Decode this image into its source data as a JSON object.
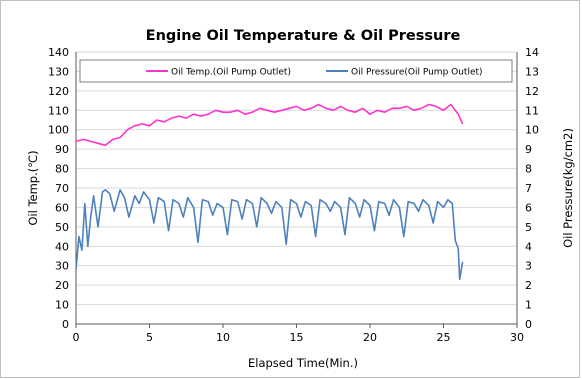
{
  "chart_data": {
    "type": "line",
    "title": "Engine Oil Temperature & Oil Pressure",
    "xlabel": "Elapsed Time(Min.)",
    "ylabel": "Oil Temp.(℃)",
    "y2label": "Oil Pressure(kg/cm2)",
    "xlim": [
      0,
      30
    ],
    "ylim": [
      0,
      140
    ],
    "y2lim": [
      0,
      14
    ],
    "x_ticks": [
      "0",
      "5",
      "10",
      "15",
      "20",
      "25",
      "30"
    ],
    "y_ticks": [
      "0",
      "10",
      "20",
      "30",
      "40",
      "50",
      "60",
      "70",
      "80",
      "90",
      "100",
      "110",
      "120",
      "130",
      "140"
    ],
    "y2_ticks": [
      "0",
      "1",
      "2",
      "3",
      "4",
      "5",
      "6",
      "7",
      "8",
      "9",
      "10",
      "11",
      "12",
      "13",
      "14"
    ],
    "grid": true,
    "legend_position": "top",
    "series": [
      {
        "name": "Oil Temp.(Oil Pump Outlet)",
        "axis": "left",
        "color": "#ff33cc",
        "x": [
          0,
          0.5,
          1.0,
          1.5,
          2.0,
          2.5,
          3.0,
          3.5,
          4.0,
          4.5,
          5.0,
          5.5,
          6.0,
          6.5,
          7.0,
          7.5,
          8.0,
          8.5,
          9.0,
          9.5,
          10.0,
          10.5,
          11.0,
          11.5,
          12.0,
          12.5,
          13.0,
          13.5,
          14.0,
          14.5,
          15.0,
          15.5,
          16.0,
          16.5,
          17.0,
          17.5,
          18.0,
          18.5,
          19.0,
          19.5,
          20.0,
          20.5,
          21.0,
          21.5,
          22.0,
          22.5,
          23.0,
          23.5,
          24.0,
          24.5,
          25.0,
          25.5,
          26.0,
          26.3
        ],
        "values": [
          94,
          95,
          94,
          93,
          92,
          95,
          96,
          100,
          102,
          103,
          102,
          105,
          104,
          106,
          107,
          106,
          108,
          107,
          108,
          110,
          109,
          109,
          110,
          108,
          109,
          111,
          110,
          109,
          110,
          111,
          112,
          110,
          111,
          113,
          111,
          110,
          112,
          110,
          109,
          111,
          108,
          110,
          109,
          111,
          111,
          112,
          110,
          111,
          113,
          112,
          110,
          113,
          108,
          103
        ]
      },
      {
        "name": "Oil Pressure(Oil Pump Outlet)",
        "axis": "right",
        "color": "#4f81bd",
        "x": [
          0,
          0.2,
          0.4,
          0.6,
          0.8,
          1.0,
          1.2,
          1.5,
          1.8,
          2.0,
          2.3,
          2.6,
          3.0,
          3.3,
          3.6,
          4.0,
          4.3,
          4.6,
          5.0,
          5.3,
          5.6,
          6.0,
          6.3,
          6.6,
          7.0,
          7.3,
          7.6,
          8.0,
          8.3,
          8.6,
          9.0,
          9.3,
          9.6,
          10.0,
          10.3,
          10.6,
          11.0,
          11.3,
          11.6,
          12.0,
          12.3,
          12.6,
          13.0,
          13.3,
          13.6,
          14.0,
          14.3,
          14.6,
          15.0,
          15.3,
          15.6,
          16.0,
          16.3,
          16.6,
          17.0,
          17.3,
          17.6,
          18.0,
          18.3,
          18.6,
          19.0,
          19.3,
          19.6,
          20.0,
          20.3,
          20.6,
          21.0,
          21.3,
          21.6,
          22.0,
          22.3,
          22.6,
          23.0,
          23.3,
          23.6,
          24.0,
          24.3,
          24.6,
          25.0,
          25.3,
          25.6,
          25.8,
          26.0,
          26.1,
          26.3
        ],
        "values": [
          2.8,
          4.5,
          3.8,
          6.2,
          4.0,
          5.5,
          6.6,
          5.0,
          6.8,
          6.9,
          6.7,
          5.8,
          6.9,
          6.5,
          5.5,
          6.6,
          6.2,
          6.8,
          6.4,
          5.2,
          6.5,
          6.3,
          4.8,
          6.4,
          6.2,
          5.5,
          6.5,
          6.0,
          4.2,
          6.4,
          6.3,
          5.6,
          6.2,
          6.0,
          4.6,
          6.4,
          6.3,
          5.4,
          6.4,
          6.2,
          5.0,
          6.5,
          6.2,
          5.7,
          6.3,
          6.0,
          4.1,
          6.4,
          6.2,
          5.5,
          6.3,
          6.1,
          4.5,
          6.4,
          6.2,
          5.8,
          6.3,
          6.0,
          4.6,
          6.5,
          6.2,
          5.5,
          6.4,
          6.1,
          4.8,
          6.3,
          6.2,
          5.6,
          6.4,
          6.0,
          4.5,
          6.3,
          6.2,
          5.8,
          6.4,
          6.1,
          5.2,
          6.3,
          6.0,
          6.4,
          6.2,
          4.3,
          3.9,
          2.3,
          3.2
        ]
      }
    ]
  }
}
